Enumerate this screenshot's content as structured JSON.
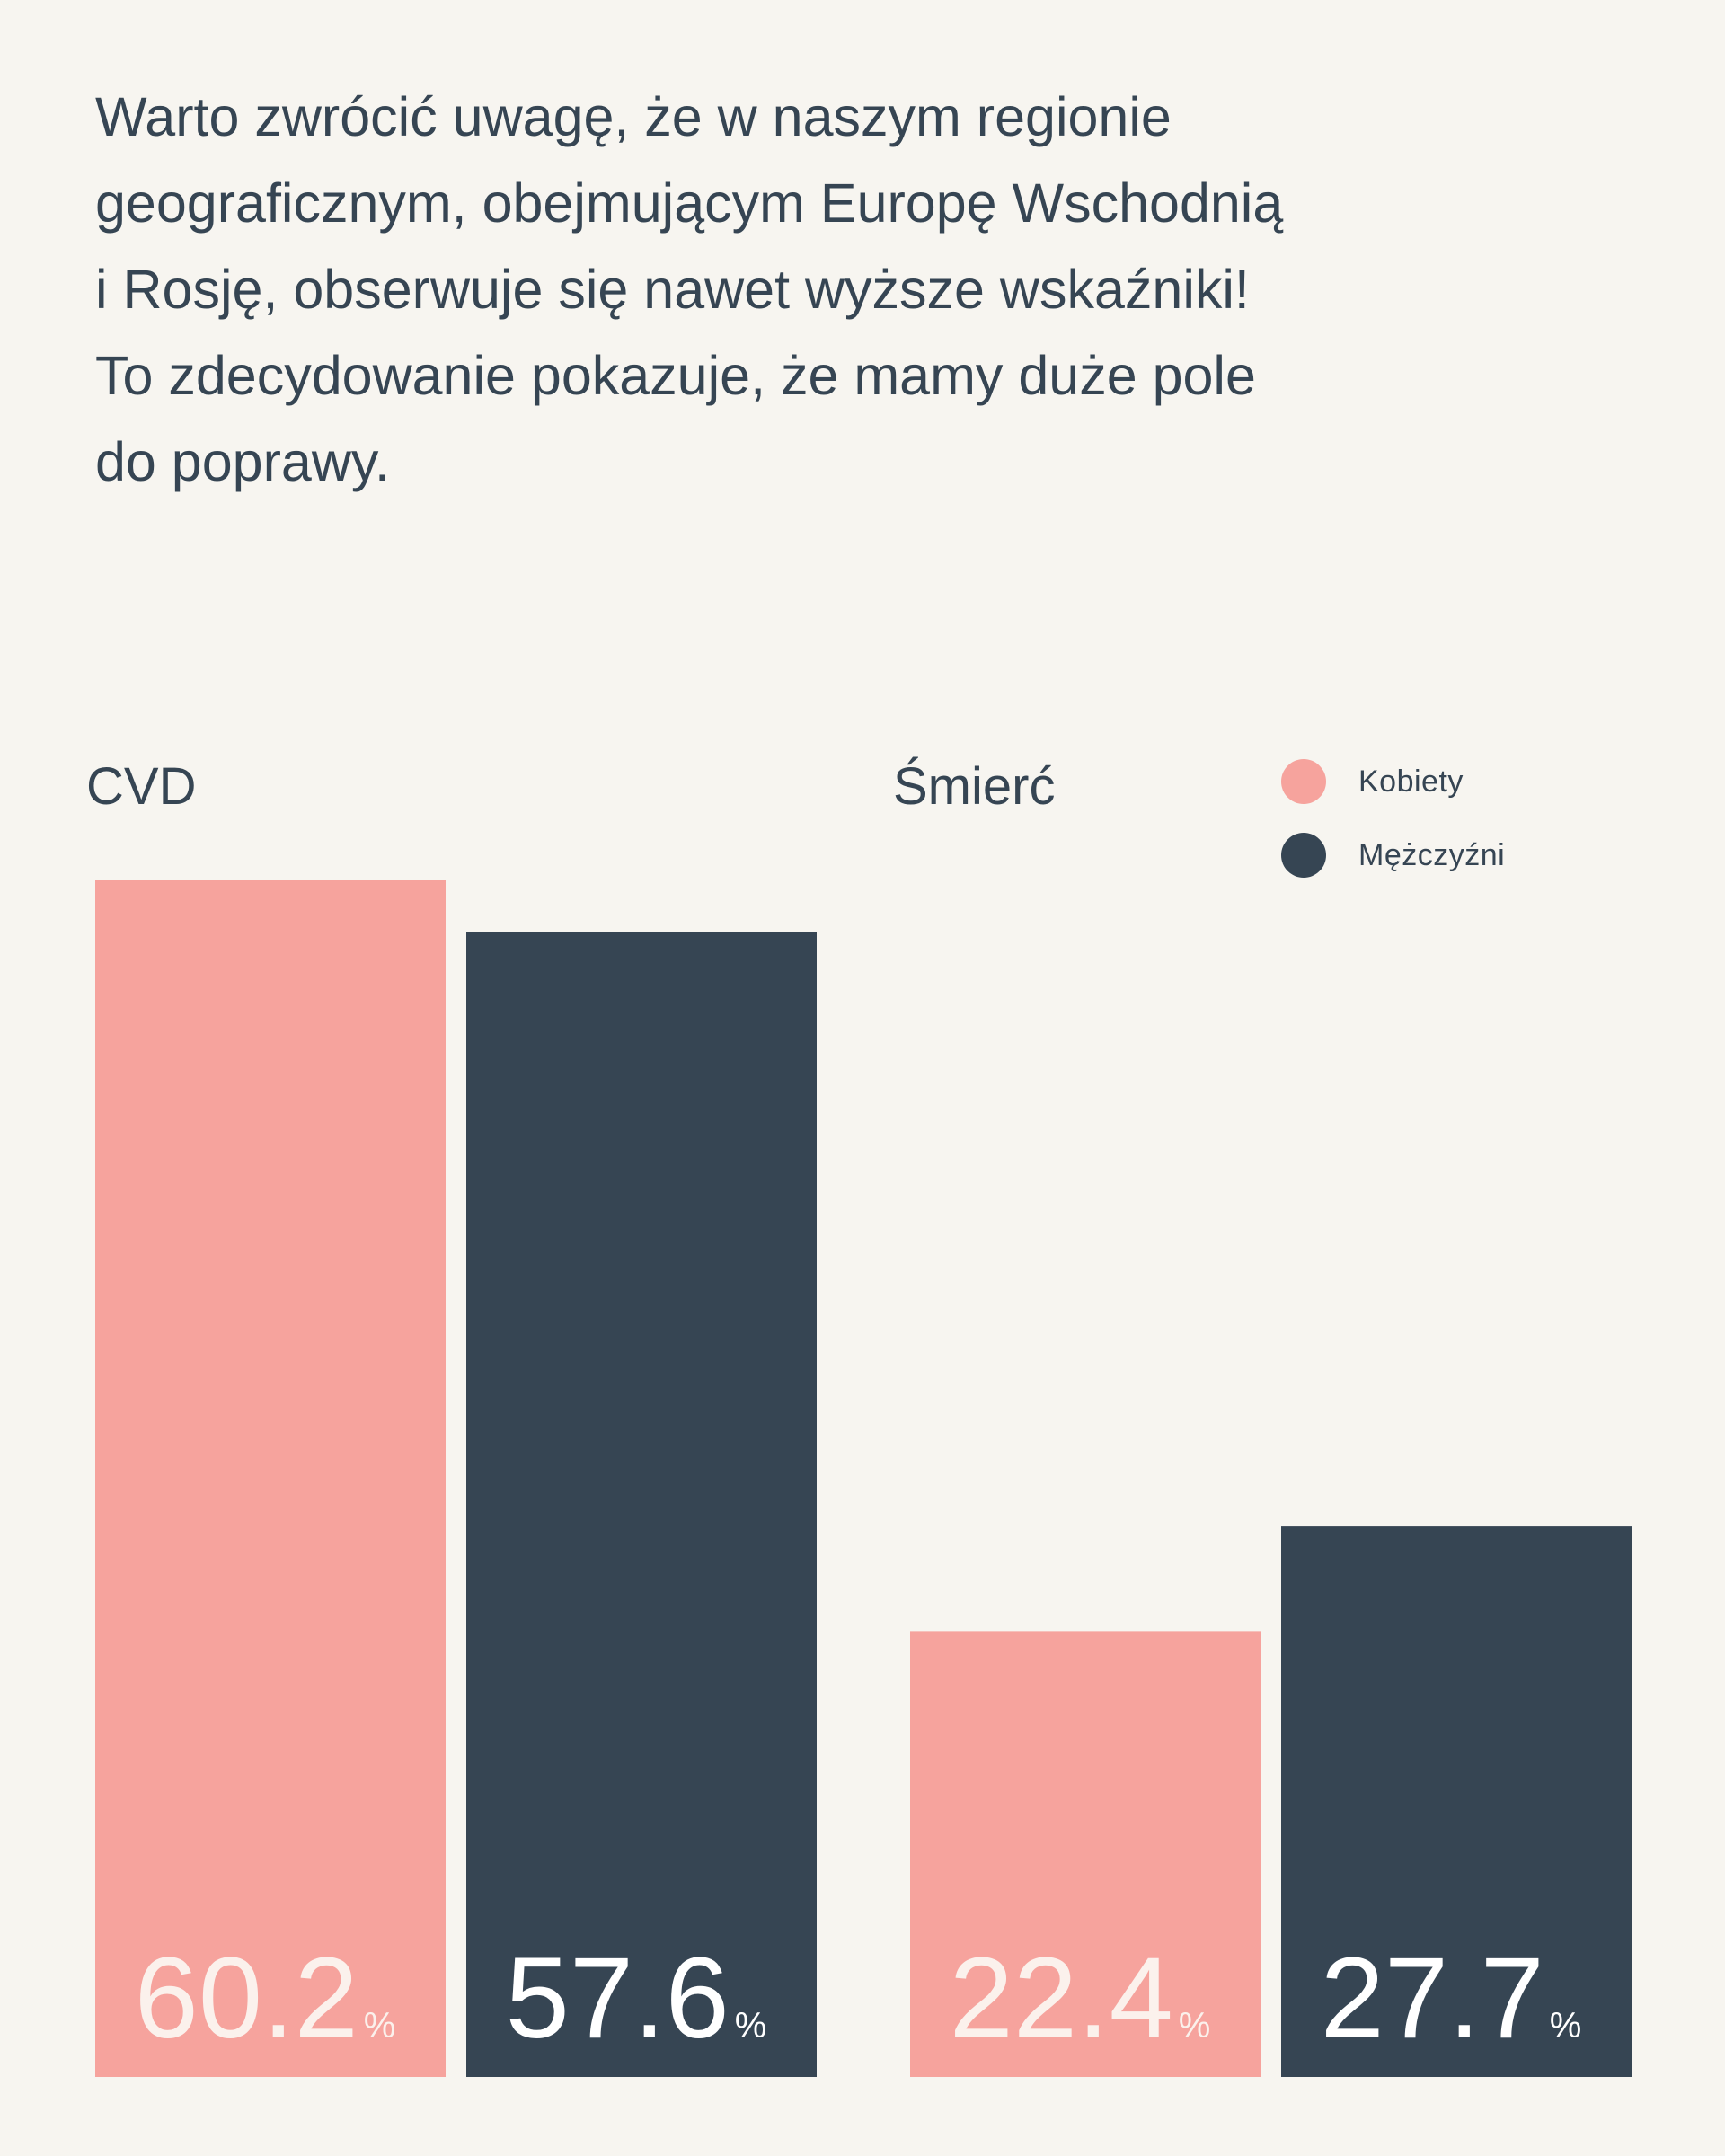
{
  "intro": {
    "lines": [
      "Warto zwrócić uwagę, że w naszym regionie",
      "geograficznym, obejmującym Europę Wschodnią",
      "i Rosję, obserwuje się nawet wyższe wskaźniki!",
      "To zdecydowanie pokazuje, że mamy duże pole",
      "do poprawy."
    ]
  },
  "chart_data": {
    "type": "bar",
    "categories": [
      "CVD",
      "Śmierć"
    ],
    "series": [
      {
        "name": "Kobiety",
        "color": "#f6a39d",
        "values": [
          60.2,
          22.4
        ]
      },
      {
        "name": "Mężczyźni",
        "color": "#364553",
        "values": [
          57.6,
          27.7
        ]
      }
    ],
    "value_labels": [
      [
        "60.2",
        "22.4"
      ],
      [
        "57.6",
        "27.7"
      ]
    ],
    "unit": "%",
    "value_label_colors": {
      "Kobiety": "#fbf1ec",
      "Mężczyźni": "#ffffff"
    },
    "legend_position": "top-right",
    "grid": false,
    "ylim": [
      0,
      60.2
    ]
  }
}
